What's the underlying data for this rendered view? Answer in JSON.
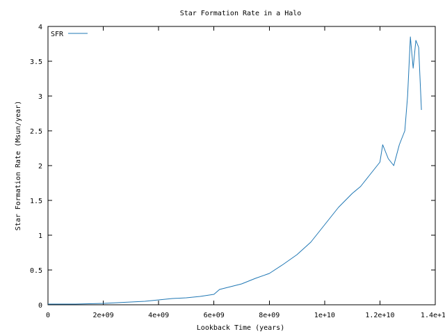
{
  "chart_data": {
    "type": "line",
    "title": "Star Formation Rate in a Halo",
    "xlabel": "Lookback Time (years)",
    "ylabel": "Star Formation Rate (Msun/year)",
    "xlim": [
      0,
      14000000000
    ],
    "ylim": [
      0,
      4
    ],
    "x_ticks": [
      0,
      2000000000,
      4000000000,
      6000000000,
      8000000000,
      10000000000,
      12000000000,
      14000000000
    ],
    "x_tick_labels": [
      "0",
      "2e+09",
      "4e+09",
      "6e+09",
      "8e+09",
      "1e+10",
      "1.2e+10",
      "1.4e+10"
    ],
    "y_ticks": [
      0,
      0.5,
      1,
      1.5,
      2,
      2.5,
      3,
      3.5,
      4
    ],
    "y_tick_labels": [
      "0",
      "0.5",
      "1",
      "1.5",
      "2",
      "2.5",
      "3",
      "3.5",
      "4"
    ],
    "grid": false,
    "legend_position": "top-left",
    "series": [
      {
        "name": "SFR",
        "color": "#1f77b4",
        "x": [
          0,
          500000000,
          1000000000,
          1500000000,
          2000000000,
          2500000000,
          3000000000,
          3500000000,
          4000000000,
          4500000000,
          5000000000,
          5500000000,
          6000000000,
          6200000000,
          6500000000,
          7000000000,
          7500000000,
          8000000000,
          8500000000,
          9000000000,
          9500000000,
          10000000000,
          10500000000,
          11000000000,
          11300000000,
          11600000000,
          12000000000,
          12100000000,
          12300000000,
          12500000000,
          12700000000,
          12900000000,
          13000000000,
          13100000000,
          13200000000,
          13300000000,
          13400000000,
          13500000000
        ],
        "y": [
          0.01,
          0.01,
          0.01,
          0.015,
          0.02,
          0.03,
          0.04,
          0.05,
          0.07,
          0.09,
          0.1,
          0.12,
          0.15,
          0.22,
          0.25,
          0.3,
          0.38,
          0.45,
          0.58,
          0.72,
          0.9,
          1.15,
          1.4,
          1.6,
          1.7,
          1.85,
          2.05,
          2.3,
          2.1,
          2.0,
          2.3,
          2.5,
          3.0,
          3.85,
          3.4,
          3.8,
          3.7,
          2.8
        ]
      }
    ]
  }
}
